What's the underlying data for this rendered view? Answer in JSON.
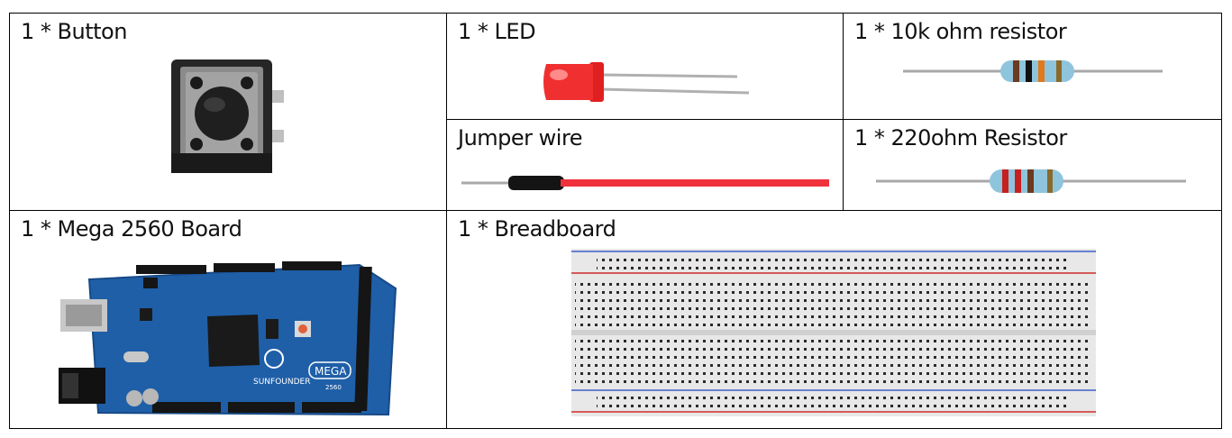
{
  "components": {
    "button": "1 * Button",
    "led": "1 * LED",
    "resistor_10k": "1 * 10k ohm resistor",
    "jumper_wire": "Jumper wire",
    "resistor_220": "1 * 220ohm Resistor",
    "mega_board": "1 * Mega 2560 Board",
    "breadboard": "1 * Breadboard"
  },
  "board_logo": {
    "brand": "SUNFOUNDER",
    "model": "MEGA",
    "number": "2560"
  }
}
